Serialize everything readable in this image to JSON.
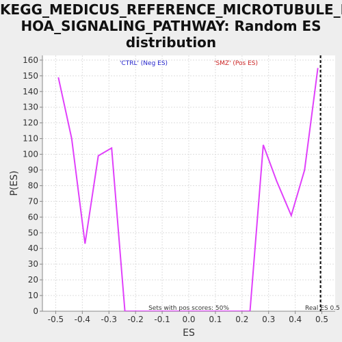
{
  "title_lines": [
    "KEGG_MEDICUS_REFERENCE_MICROTUBULE_R",
    "HOA_SIGNALING_PATHWAY: Random ES",
    "distribution"
  ],
  "colors": {
    "series": "#e040fb",
    "neg_label": "#2222cc",
    "pos_label": "#cc2222",
    "grid": "#dddddd",
    "real_es": "#000000"
  },
  "chart_data": {
    "type": "line",
    "title": "KEGG_MEDICUS_REFERENCE_MICROTUBULE_RHOA_SIGNALING_PATHWAY: Random ES distribution",
    "xlabel": "ES",
    "ylabel": "P(ES)",
    "xlim": [
      -0.55,
      0.55
    ],
    "ylim": [
      0,
      163
    ],
    "xticks": [
      -0.5,
      -0.4,
      -0.3,
      -0.2,
      -0.1,
      0.0,
      0.1,
      0.2,
      0.3,
      0.4,
      0.5
    ],
    "xtick_labels": [
      "-0.5",
      "-0.4",
      "-0.3",
      "-0.2",
      "-0.1",
      "0.0",
      "0.1",
      "0.2",
      "0.3",
      "0.4",
      "0.5"
    ],
    "yticks": [
      0,
      10,
      20,
      30,
      40,
      50,
      60,
      70,
      80,
      90,
      100,
      110,
      120,
      130,
      140,
      150,
      160
    ],
    "grid": true,
    "series": [
      {
        "x": [
          -0.49,
          -0.44,
          -0.39,
          -0.34,
          -0.29,
          -0.24,
          0.23,
          0.28,
          0.33,
          0.385,
          0.435,
          0.485
        ],
        "y": [
          149,
          110,
          43,
          99,
          104,
          0,
          0,
          106,
          83,
          61,
          90,
          155
        ]
      }
    ],
    "annotations": {
      "neg_label": "'CTRL' (Neg ES)",
      "pos_label": "'SMZ' (Pos ES)",
      "pos_scores": "Sets with pos scores: 50%",
      "real_es": "Real ES 0.5",
      "real_es_value": 0.495
    }
  }
}
